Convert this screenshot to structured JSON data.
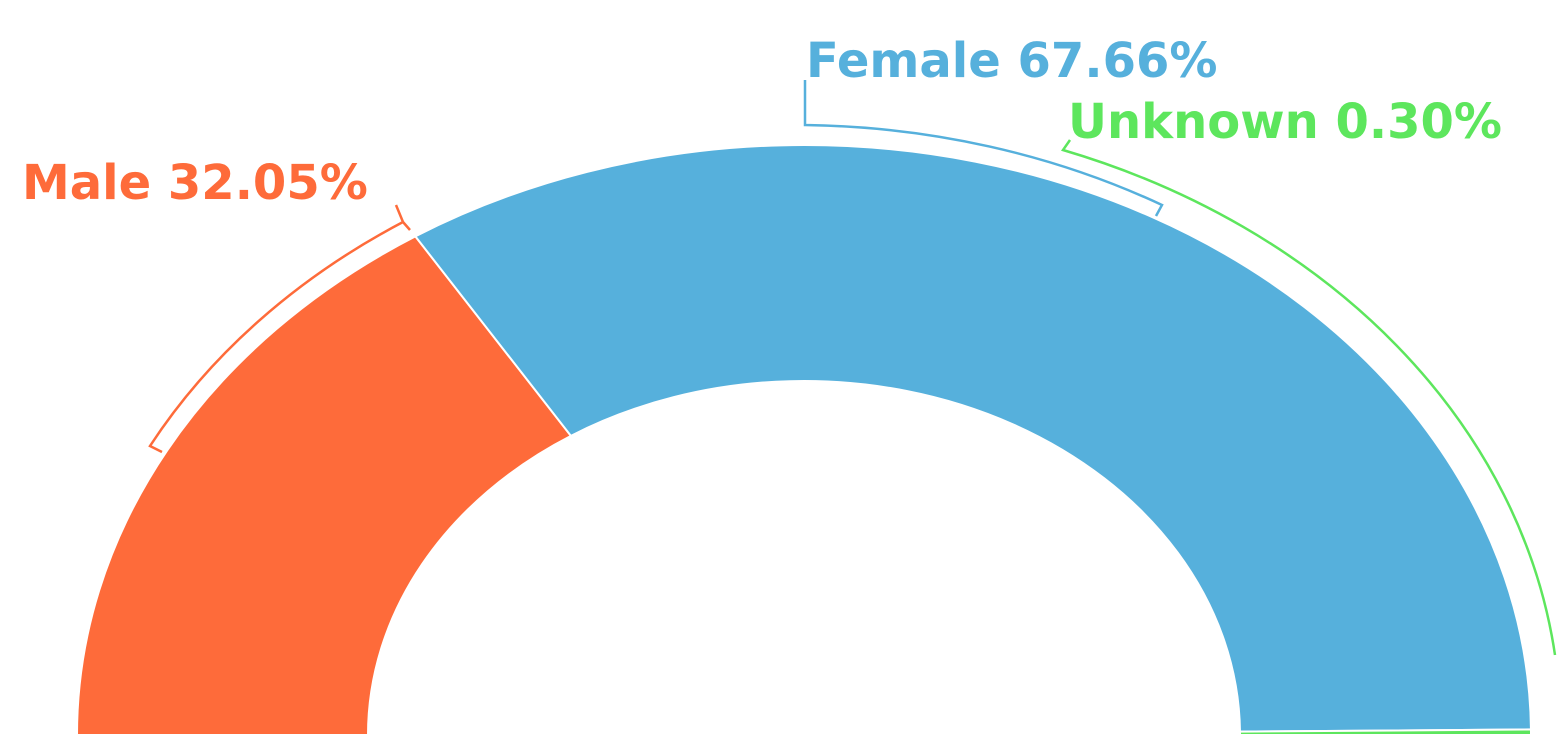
{
  "chart_data": {
    "type": "pie",
    "categories": [
      "Male",
      "Female",
      "Unknown"
    ],
    "values": [
      32.05,
      67.66,
      0.3
    ],
    "value_labels": [
      "32.05%",
      "67.66%",
      "0.30%"
    ],
    "colors": [
      "#fe6b3a",
      "#56b0dc",
      "#5de65d"
    ]
  }
}
